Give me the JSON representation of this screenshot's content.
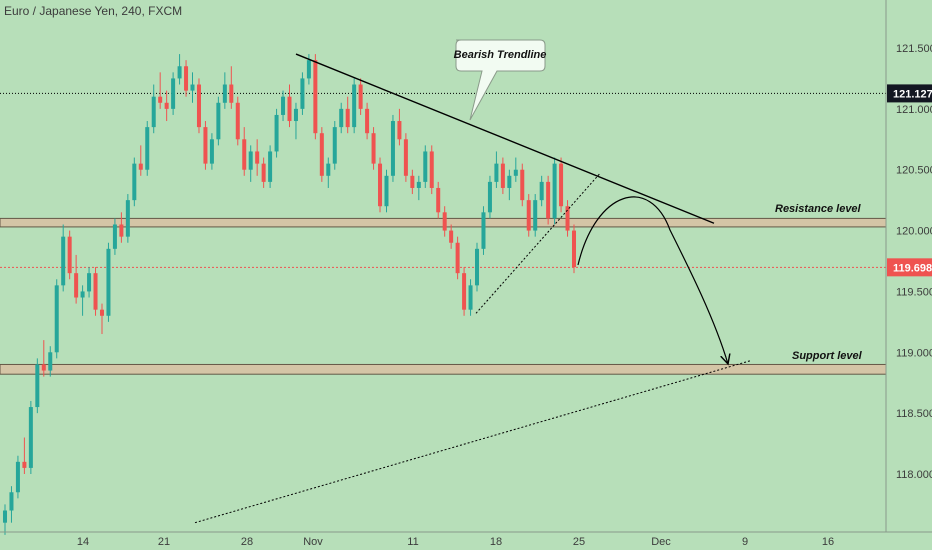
{
  "chart_data": {
    "type": "candlestick",
    "title": "Euro / Japanese Yen, 240, FXCM",
    "colors": {
      "background": "#b7dfb9",
      "bull": "#26a69a",
      "bear": "#ef5350",
      "zone_fill": "#d8c3a5",
      "zone_stroke": "#5a4a3a",
      "current_price_line": "#ef5350",
      "level_line": "#000000"
    },
    "y_axis": {
      "range": [
        117.6,
        121.8
      ],
      "ticks": [
        "121.500",
        "121.000",
        "120.500",
        "120.000",
        "119.500",
        "119.000",
        "118.500",
        "118.000"
      ],
      "tick_values": [
        121.5,
        121.0,
        120.5,
        120.0,
        119.5,
        119.0,
        118.5,
        118.0
      ]
    },
    "x_axis": {
      "ticks": [
        "14",
        "21",
        "28",
        "Nov",
        "11",
        "18",
        "25",
        "Dec",
        "9",
        "16"
      ]
    },
    "price_tags": [
      {
        "label": "121.127",
        "value": 121.127,
        "color": "#131722",
        "line": "dotted"
      },
      {
        "label": "119.698",
        "value": 119.698,
        "color": "#ef5350",
        "line": "dotted-red"
      }
    ],
    "zones": [
      {
        "name": "resistance",
        "label": "Resistance level",
        "top": 120.1,
        "bottom": 120.03
      },
      {
        "name": "support",
        "label": "Support level",
        "top": 118.9,
        "bottom": 118.82
      }
    ],
    "annotations": {
      "trendline_label": "Bearish Trendline"
    },
    "ohlc": [
      [
        117.6,
        117.75,
        117.5,
        117.7
      ],
      [
        117.7,
        117.9,
        117.6,
        117.85
      ],
      [
        117.85,
        118.15,
        117.8,
        118.1
      ],
      [
        118.1,
        118.3,
        118.0,
        118.05
      ],
      [
        118.05,
        118.6,
        118.0,
        118.55
      ],
      [
        118.55,
        118.95,
        118.5,
        118.9
      ],
      [
        118.9,
        119.1,
        118.8,
        118.85
      ],
      [
        118.85,
        119.05,
        118.8,
        119.0
      ],
      [
        119.0,
        119.6,
        118.95,
        119.55
      ],
      [
        119.55,
        120.05,
        119.5,
        119.95
      ],
      [
        119.95,
        120.0,
        119.6,
        119.65
      ],
      [
        119.65,
        119.8,
        119.4,
        119.45
      ],
      [
        119.45,
        119.55,
        119.3,
        119.5
      ],
      [
        119.5,
        119.7,
        119.45,
        119.65
      ],
      [
        119.65,
        119.7,
        119.3,
        119.35
      ],
      [
        119.35,
        119.4,
        119.15,
        119.3
      ],
      [
        119.3,
        119.9,
        119.25,
        119.85
      ],
      [
        119.85,
        120.1,
        119.8,
        120.05
      ],
      [
        120.05,
        120.15,
        119.9,
        119.95
      ],
      [
        119.95,
        120.3,
        119.9,
        120.25
      ],
      [
        120.25,
        120.6,
        120.2,
        120.55
      ],
      [
        120.55,
        120.7,
        120.45,
        120.5
      ],
      [
        120.5,
        120.9,
        120.45,
        120.85
      ],
      [
        120.85,
        121.2,
        120.8,
        121.1
      ],
      [
        121.1,
        121.3,
        121.0,
        121.05
      ],
      [
        121.05,
        121.15,
        120.9,
        121.0
      ],
      [
        121.0,
        121.3,
        120.95,
        121.25
      ],
      [
        121.25,
        121.45,
        121.2,
        121.35
      ],
      [
        121.35,
        121.4,
        121.1,
        121.15
      ],
      [
        121.15,
        121.3,
        121.05,
        121.2
      ],
      [
        121.2,
        121.25,
        120.8,
        120.85
      ],
      [
        120.85,
        120.9,
        120.5,
        120.55
      ],
      [
        120.55,
        120.8,
        120.5,
        120.75
      ],
      [
        120.75,
        121.1,
        120.7,
        121.05
      ],
      [
        121.05,
        121.3,
        121.0,
        121.2
      ],
      [
        121.2,
        121.35,
        121.0,
        121.05
      ],
      [
        121.05,
        121.1,
        120.7,
        120.75
      ],
      [
        120.75,
        120.85,
        120.45,
        120.5
      ],
      [
        120.5,
        120.7,
        120.4,
        120.65
      ],
      [
        120.65,
        120.75,
        120.45,
        120.55
      ],
      [
        120.55,
        120.6,
        120.35,
        120.4
      ],
      [
        120.4,
        120.7,
        120.35,
        120.65
      ],
      [
        120.65,
        121.0,
        120.6,
        120.95
      ],
      [
        120.95,
        121.15,
        120.9,
        121.1
      ],
      [
        121.1,
        121.2,
        120.85,
        120.9
      ],
      [
        120.9,
        121.05,
        120.75,
        121.0
      ],
      [
        121.0,
        121.3,
        120.95,
        121.25
      ],
      [
        121.25,
        121.45,
        121.2,
        121.4
      ],
      [
        121.4,
        121.45,
        120.75,
        120.8
      ],
      [
        120.8,
        120.85,
        120.4,
        120.45
      ],
      [
        120.45,
        120.6,
        120.35,
        120.55
      ],
      [
        120.55,
        120.9,
        120.5,
        120.85
      ],
      [
        120.85,
        121.05,
        120.8,
        121.0
      ],
      [
        121.0,
        121.1,
        120.8,
        120.85
      ],
      [
        120.85,
        121.25,
        120.8,
        121.2
      ],
      [
        121.2,
        121.25,
        120.95,
        121.0
      ],
      [
        121.0,
        121.05,
        120.75,
        120.8
      ],
      [
        120.8,
        120.85,
        120.5,
        120.55
      ],
      [
        120.55,
        120.6,
        120.15,
        120.2
      ],
      [
        120.2,
        120.5,
        120.15,
        120.45
      ],
      [
        120.45,
        120.95,
        120.4,
        120.9
      ],
      [
        120.9,
        121.0,
        120.7,
        120.75
      ],
      [
        120.75,
        120.8,
        120.4,
        120.45
      ],
      [
        120.45,
        120.5,
        120.3,
        120.35
      ],
      [
        120.35,
        120.45,
        120.25,
        120.4
      ],
      [
        120.4,
        120.7,
        120.35,
        120.65
      ],
      [
        120.65,
        120.7,
        120.3,
        120.35
      ],
      [
        120.35,
        120.4,
        120.1,
        120.15
      ],
      [
        120.15,
        120.2,
        119.95,
        120.0
      ],
      [
        120.0,
        120.05,
        119.85,
        119.9
      ],
      [
        119.9,
        119.95,
        119.6,
        119.65
      ],
      [
        119.65,
        119.7,
        119.3,
        119.35
      ],
      [
        119.35,
        119.6,
        119.3,
        119.55
      ],
      [
        119.55,
        119.9,
        119.5,
        119.85
      ],
      [
        119.85,
        120.2,
        119.8,
        120.15
      ],
      [
        120.15,
        120.45,
        120.1,
        120.4
      ],
      [
        120.4,
        120.65,
        120.35,
        120.55
      ],
      [
        120.55,
        120.6,
        120.3,
        120.35
      ],
      [
        120.35,
        120.5,
        120.25,
        120.45
      ],
      [
        120.45,
        120.6,
        120.4,
        120.5
      ],
      [
        120.5,
        120.55,
        120.2,
        120.25
      ],
      [
        120.25,
        120.3,
        119.95,
        120.0
      ],
      [
        120.0,
        120.3,
        119.95,
        120.25
      ],
      [
        120.25,
        120.45,
        120.2,
        120.4
      ],
      [
        120.4,
        120.45,
        120.05,
        120.1
      ],
      [
        120.1,
        120.6,
        120.05,
        120.55
      ],
      [
        120.55,
        120.6,
        120.15,
        120.2
      ],
      [
        120.2,
        120.25,
        119.95,
        120.0
      ],
      [
        120.0,
        120.05,
        119.65,
        119.7
      ]
    ]
  }
}
